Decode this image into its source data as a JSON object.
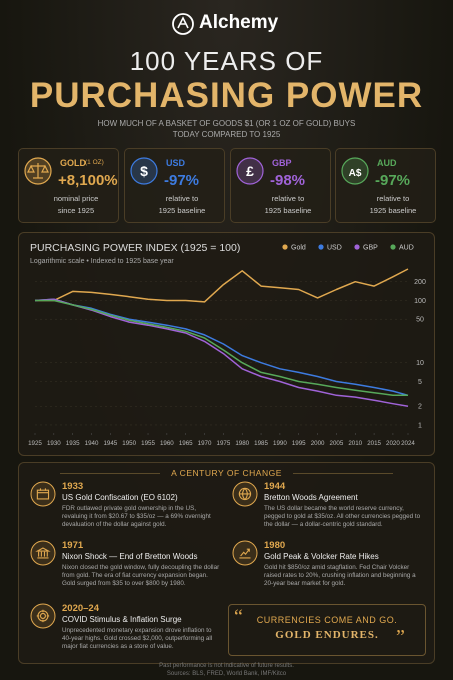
{
  "header": {
    "brand": "Alchemy",
    "title_line1": "100 YEARS OF",
    "title_line2": "PURCHASING POWER",
    "subtitle": "HOW MUCH OF A BASKET OF GOODS $1 (OR 1 OZ OF GOLD) BUYS TODAY COMPARED TO 1925"
  },
  "cards": [
    {
      "symbol": "",
      "name": "GOLD",
      "note": "(1 OZ)",
      "value": "+8,100%",
      "line1": "nominal price",
      "line2": "since 1925",
      "color": "#e0a84f"
    },
    {
      "symbol": "$",
      "name": "USD",
      "value": "-97%",
      "line1": "relative to",
      "line2": "1925 baseline",
      "color": "#3d7be0"
    },
    {
      "symbol": "£",
      "name": "GBP",
      "value": "-98%",
      "line1": "relative to",
      "line2": "1925 baseline",
      "color": "#a063d8"
    },
    {
      "symbol": "A$",
      "name": "AUD",
      "value": "-97%",
      "line1": "relative to",
      "line2": "1925 baseline",
      "color": "#57a85a"
    }
  ],
  "chart_data": {
    "type": "line",
    "title": "PURCHASING POWER INDEX (1925 = 100)",
    "subtitle": "Logarithmic scale • Indexed to 1925 base year",
    "x": [
      1925,
      1930,
      1935,
      1940,
      1945,
      1950,
      1955,
      1960,
      1965,
      1970,
      1975,
      1980,
      1985,
      1990,
      1995,
      2000,
      2005,
      2010,
      2015,
      2020,
      2024
    ],
    "series": [
      {
        "name": "Gold",
        "color": "#e0a84f",
        "values": [
          100,
          100,
          140,
          135,
          125,
          115,
          105,
          100,
          100,
          95,
          180,
          300,
          170,
          160,
          150,
          110,
          150,
          200,
          170,
          240,
          320
        ]
      },
      {
        "name": "USD",
        "color": "#3d7be0",
        "values": [
          100,
          105,
          85,
          75,
          60,
          50,
          45,
          40,
          35,
          28,
          20,
          13,
          10,
          8,
          7,
          6,
          5,
          4.5,
          4,
          3.5,
          3
        ]
      },
      {
        "name": "GBP",
        "color": "#a063d8",
        "values": [
          100,
          105,
          85,
          70,
          55,
          45,
          40,
          35,
          30,
          22,
          14,
          8,
          6,
          5,
          4,
          3.5,
          3,
          2.8,
          2.5,
          2.2,
          2
        ]
      },
      {
        "name": "AUD",
        "color": "#57a85a",
        "values": [
          100,
          100,
          85,
          72,
          58,
          48,
          42,
          37,
          32,
          25,
          16,
          10,
          7,
          6,
          5,
          4.5,
          4,
          3.6,
          3.3,
          3,
          3
        ]
      }
    ],
    "xlim": [
      1925,
      2024
    ],
    "xticks": [
      1925,
      1930,
      1935,
      1940,
      1945,
      1950,
      1955,
      1960,
      1965,
      1970,
      1975,
      1980,
      1985,
      1990,
      1995,
      2000,
      2005,
      2010,
      2015,
      2020,
      2024
    ],
    "ylim": [
      0.8,
      400
    ],
    "yticks": [
      1,
      2,
      5,
      10,
      50,
      100,
      200
    ],
    "log_scale": true,
    "grid": true,
    "legend": "top-right"
  },
  "timeline": {
    "title": "A CENTURY OF CHANGE",
    "events": [
      {
        "year": "1933",
        "title": "US Gold Confiscation (EO 6102)",
        "text": "FDR outlawed private gold ownership in the US, revaluing it from $20.67 to $35/oz — a 69% overnight devaluation of the dollar against gold."
      },
      {
        "year": "1944",
        "title": "Bretton Woods Agreement",
        "text": "The US dollar became the world reserve currency, pegged to gold at $35/oz. All other currencies pegged to the dollar — a dollar-centric gold standard."
      },
      {
        "year": "1971",
        "title": "Nixon Shock — End of Bretton Woods",
        "text": "Nixon closed the gold window, fully decoupling the dollar from gold. The era of fiat currency expansion began. Gold surged from $35 to over $800 by 1980."
      },
      {
        "year": "1980",
        "title": "Gold Peak & Volcker Rate Hikes",
        "text": "Gold hit $850/oz amid stagflation. Fed Chair Volcker raised rates to 20%, crushing inflation and beginning a 20-year bear market for gold."
      },
      {
        "year": "2020–24",
        "title": "COVID Stimulus & Inflation Surge",
        "text": "Unprecedented monetary expansion drove inflation to 40-year highs. Gold crossed $2,000, outperforming all major fiat currencies as a store of value."
      }
    ],
    "quote_line1": "CURRENCIES COME AND GO.",
    "quote_line2": "GOLD ENDURES."
  },
  "footer": {
    "line1": "Past performance is not indicative of future results.",
    "line2": "Sources: BLS, FRED, World Bank, IMF/Kitco"
  }
}
